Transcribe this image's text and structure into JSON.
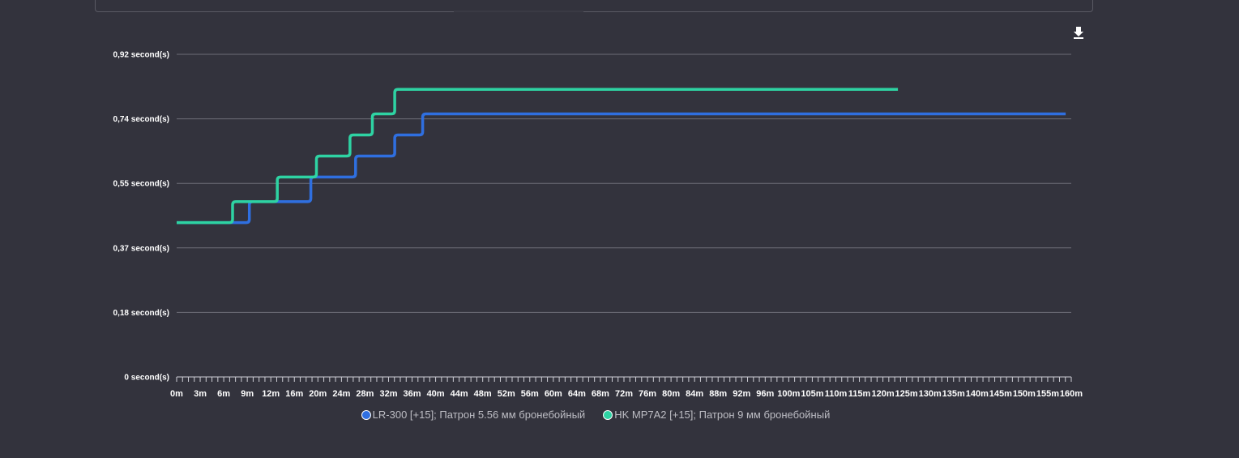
{
  "toolbar": {
    "download_icon": "download-icon"
  },
  "chart_data": {
    "type": "line",
    "title": "",
    "xlabel": "",
    "ylabel": "",
    "y_ticks": [
      "0 second(s)",
      "0,18 second(s)",
      "0,37 second(s)",
      "0,55 second(s)",
      "0,74 second(s)",
      "0,92 second(s)"
    ],
    "ylim": [
      0,
      0.92
    ],
    "x_labels": [
      "0m",
      "3m",
      "6m",
      "9m",
      "12m",
      "16m",
      "20m",
      "24m",
      "28m",
      "32m",
      "36m",
      "40m",
      "44m",
      "48m",
      "52m",
      "56m",
      "60m",
      "64m",
      "68m",
      "72m",
      "76m",
      "80m",
      "84m",
      "88m",
      "92m",
      "96m",
      "100m",
      "105m",
      "110m",
      "115m",
      "120m",
      "125m",
      "130m",
      "135m",
      "140m",
      "145m",
      "150m",
      "155m",
      "160m"
    ],
    "legend_position": "bottom",
    "grid": true,
    "series": [
      {
        "name": "LR-300 [+15]; Патрон 5.56 мм бронебойный",
        "color": "#2f6fe0",
        "steps": [
          [
            0,
            0.44
          ],
          [
            13,
            0.5
          ],
          [
            24,
            0.57
          ],
          [
            32,
            0.63
          ],
          [
            39,
            0.69
          ],
          [
            44,
            0.75
          ]
        ],
        "x_end": 159
      },
      {
        "name": "HK MP7A2 [+15]; Патрон 9 мм бронебойный",
        "color": "#2ed3a3",
        "steps": [
          [
            0,
            0.44
          ],
          [
            10,
            0.5
          ],
          [
            18,
            0.57
          ],
          [
            25,
            0.63
          ],
          [
            31,
            0.69
          ],
          [
            35,
            0.75
          ],
          [
            39,
            0.82
          ]
        ],
        "x_end": 129
      }
    ]
  }
}
